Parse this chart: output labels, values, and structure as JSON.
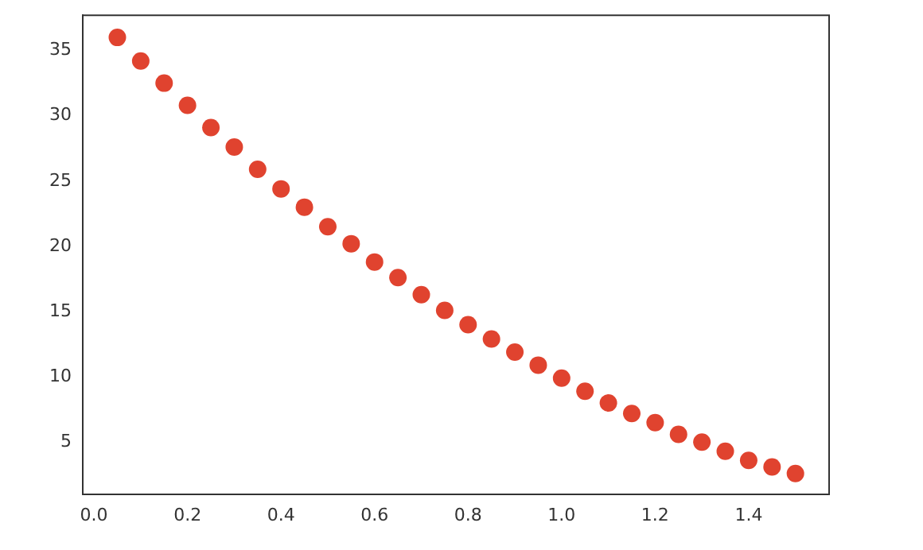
{
  "chart_data": {
    "type": "scatter",
    "x": [
      0.05,
      0.1,
      0.15,
      0.2,
      0.25,
      0.3,
      0.35,
      0.4,
      0.45,
      0.5,
      0.55,
      0.6,
      0.65,
      0.7,
      0.75,
      0.8,
      0.85,
      0.9,
      0.95,
      1.0,
      1.05,
      1.1,
      1.15,
      1.2,
      1.25,
      1.3,
      1.35,
      1.4,
      1.45,
      1.5
    ],
    "series": [
      {
        "color": "#e0432f",
        "values": [
          36.0,
          34.2,
          32.5,
          30.8,
          29.1,
          27.6,
          25.9,
          24.4,
          23.0,
          21.5,
          20.2,
          18.8,
          17.6,
          16.3,
          15.1,
          14.0,
          12.9,
          11.9,
          10.9,
          9.9,
          8.9,
          8.0,
          7.2,
          6.5,
          5.6,
          5.0,
          4.3,
          3.6,
          3.1,
          2.6
        ]
      }
    ],
    "xlim": [
      -0.024,
      1.572
    ],
    "xticks": [
      {
        "value": 0,
        "label": "0.0"
      },
      {
        "value": 0.2,
        "label": "0.2"
      },
      {
        "value": 0.4,
        "label": "0.4"
      },
      {
        "value": 0.6,
        "label": "0.6"
      },
      {
        "value": 0.8,
        "label": "0.8"
      },
      {
        "value": 1,
        "label": "1.0"
      },
      {
        "value": 1.2,
        "label": "1.2"
      },
      {
        "value": 1.4,
        "label": "1.4"
      }
    ],
    "ylim": [
      1.0,
      37.7
    ],
    "yticks": [
      5,
      10,
      15,
      20,
      25,
      30,
      35
    ],
    "grid": false,
    "legend": false,
    "marker": "circle"
  }
}
